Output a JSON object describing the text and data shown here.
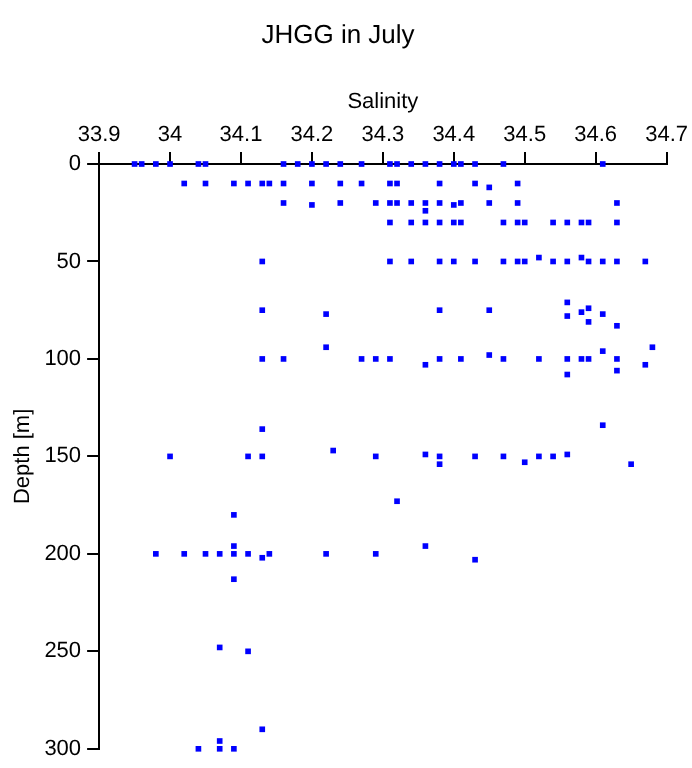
{
  "chart_data": {
    "type": "scatter",
    "title": "JHGG in July",
    "xlabel": "Salinity",
    "ylabel": "Depth [m]",
    "color": "#0000ff",
    "marker": "square",
    "grid": false,
    "legend": false,
    "xlim": [
      33.9,
      34.7
    ],
    "xticks": [
      33.9,
      34,
      34.1,
      34.2,
      34.3,
      34.4,
      34.5,
      34.6,
      34.7
    ],
    "ylim": [
      300,
      0
    ],
    "yticks": [
      0,
      50,
      100,
      150,
      200,
      250,
      300
    ],
    "x": [
      33.95,
      33.96,
      33.98,
      34.0,
      34.04,
      34.05,
      34.16,
      34.18,
      34.2,
      34.22,
      34.24,
      34.27,
      34.31,
      34.32,
      34.34,
      34.36,
      34.38,
      34.4,
      34.41,
      34.43,
      34.47,
      34.61,
      34.02,
      34.05,
      34.09,
      34.11,
      34.13,
      34.14,
      34.16,
      34.2,
      34.24,
      34.27,
      34.31,
      34.32,
      34.38,
      34.43,
      34.45,
      34.49,
      34.16,
      34.2,
      34.24,
      34.29,
      34.31,
      34.32,
      34.34,
      34.36,
      34.36,
      34.38,
      34.4,
      34.41,
      34.45,
      34.49,
      34.63,
      34.31,
      34.34,
      34.36,
      34.38,
      34.4,
      34.41,
      34.47,
      34.49,
      34.5,
      34.54,
      34.56,
      34.58,
      34.59,
      34.63,
      34.13,
      34.31,
      34.34,
      34.38,
      34.4,
      34.43,
      34.47,
      34.49,
      34.5,
      34.52,
      34.54,
      34.56,
      34.58,
      34.59,
      34.61,
      34.63,
      34.67,
      34.13,
      34.22,
      34.38,
      34.45,
      34.56,
      34.56,
      34.58,
      34.59,
      34.59,
      34.61,
      34.63,
      34.22,
      34.13,
      34.16,
      34.27,
      34.29,
      34.31,
      34.36,
      34.38,
      34.41,
      34.45,
      34.47,
      34.52,
      34.56,
      34.58,
      34.59,
      34.61,
      34.63,
      34.67,
      34.68,
      34.56,
      34.63,
      34.13,
      34.61,
      34.0,
      34.11,
      34.13,
      34.23,
      34.29,
      34.36,
      34.38,
      34.38,
      34.43,
      34.47,
      34.5,
      34.52,
      34.54,
      34.56,
      34.65,
      34.32,
      34.09,
      33.98,
      34.02,
      34.05,
      34.07,
      34.09,
      34.09,
      34.11,
      34.13,
      34.14,
      34.22,
      34.29,
      34.36,
      34.43,
      34.09,
      34.07,
      34.11,
      34.13,
      34.04,
      34.07,
      34.09,
      34.07
    ],
    "values": [
      0,
      0,
      0,
      0,
      0,
      0,
      0,
      0,
      0,
      0,
      0,
      0,
      0,
      0,
      0,
      0,
      0,
      0,
      0,
      0,
      0,
      0,
      10,
      10,
      10,
      10,
      10,
      10,
      10,
      10,
      10,
      10,
      10,
      10,
      10,
      10,
      12,
      10,
      20,
      21,
      20,
      20,
      20,
      20,
      20,
      20,
      24,
      20,
      21,
      20,
      20,
      20,
      20,
      30,
      30,
      30,
      30,
      30,
      30,
      30,
      30,
      30,
      30,
      30,
      30,
      30,
      30,
      50,
      50,
      50,
      50,
      50,
      50,
      50,
      50,
      50,
      48,
      50,
      50,
      48,
      50,
      50,
      50,
      50,
      75,
      77,
      75,
      75,
      71,
      78,
      76,
      74,
      81,
      77,
      83,
      94,
      100,
      100,
      100,
      100,
      100,
      103,
      100,
      100,
      98,
      100,
      100,
      100,
      100,
      100,
      96,
      100,
      103,
      94,
      108,
      106,
      136,
      134,
      150,
      150,
      150,
      147,
      150,
      149,
      150,
      154,
      150,
      150,
      153,
      150,
      150,
      149,
      154,
      173,
      180,
      200,
      200,
      200,
      200,
      200,
      196,
      200,
      202,
      200,
      200,
      200,
      196,
      203,
      213,
      248,
      250,
      290,
      300,
      300,
      300,
      296
    ]
  }
}
